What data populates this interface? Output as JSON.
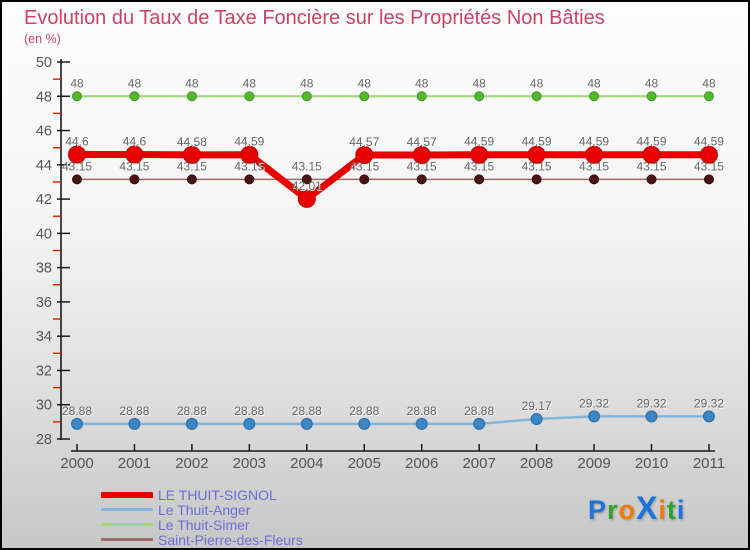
{
  "header": {
    "title": "Evolution du Taux de Taxe Foncière sur les Propriétés Non Bâties",
    "subtitle": "(en %)",
    "title_color": "#c94368"
  },
  "chart_data": {
    "type": "line",
    "x": [
      2000,
      2001,
      2002,
      2003,
      2004,
      2005,
      2006,
      2007,
      2008,
      2009,
      2010,
      2011
    ],
    "ylim": [
      28,
      50
    ],
    "ytick_step": 2,
    "yminor_step": 1,
    "grid": false,
    "legend_position": "bottom-left",
    "axis_color": "#1a1a1a",
    "tick_label_color": "#555555",
    "minor_tick_color": "#cc2200",
    "value_label_color": "#666666",
    "series": [
      {
        "name": "LE THUIT-SIGNOL",
        "values": [
          44.6,
          44.6,
          44.58,
          44.59,
          42.01,
          44.57,
          44.57,
          44.59,
          44.59,
          44.59,
          44.59,
          44.59
        ],
        "line_color": "#e60000",
        "marker_color": "#e60000",
        "marker_stroke": "#c40000",
        "line_width": 7,
        "marker_radius": 8.5
      },
      {
        "name": "Le Thuit-Anger",
        "values": [
          28.88,
          28.88,
          28.88,
          28.88,
          28.88,
          28.88,
          28.88,
          28.88,
          29.17,
          29.32,
          29.32,
          29.32
        ],
        "line_color": "#85b5d8",
        "marker_color": "#3b86c4",
        "marker_stroke": "#2e6ca3",
        "line_width": 2.5,
        "marker_radius": 5.5
      },
      {
        "name": "Le Thuit-Simer",
        "values": [
          48,
          48,
          48,
          48,
          48,
          48,
          48,
          48,
          48,
          48,
          48,
          48
        ],
        "line_color": "#a4d87e",
        "marker_color": "#55b72f",
        "marker_stroke": "#3f9722",
        "line_width": 2.2,
        "marker_radius": 4.5
      },
      {
        "name": "Saint-Pierre-des-Fleurs",
        "values": [
          43.15,
          43.15,
          43.15,
          43.15,
          43.15,
          43.15,
          43.15,
          43.15,
          43.15,
          43.15,
          43.15,
          43.15
        ],
        "line_color": "#9a6a66",
        "marker_color": "#4a1412",
        "marker_stroke": "#3a0f0d",
        "line_width": 1.6,
        "marker_radius": 4.5
      }
    ]
  },
  "legend": {
    "text_color": "#6e6ed6"
  },
  "logo": {
    "name": "Proxiti",
    "letters": [
      {
        "ch": "P",
        "color": "#1b74d8"
      },
      {
        "ch": "r",
        "color": "#2fa42f"
      },
      {
        "ch": "o",
        "color": "#f07d00"
      },
      {
        "ch": "X",
        "color": "#1b74d8",
        "big": true
      },
      {
        "ch": "i",
        "color": "#f07d00"
      },
      {
        "ch": "t",
        "color": "#2fa42f"
      },
      {
        "ch": "i",
        "color": "#1b74d8"
      }
    ]
  }
}
